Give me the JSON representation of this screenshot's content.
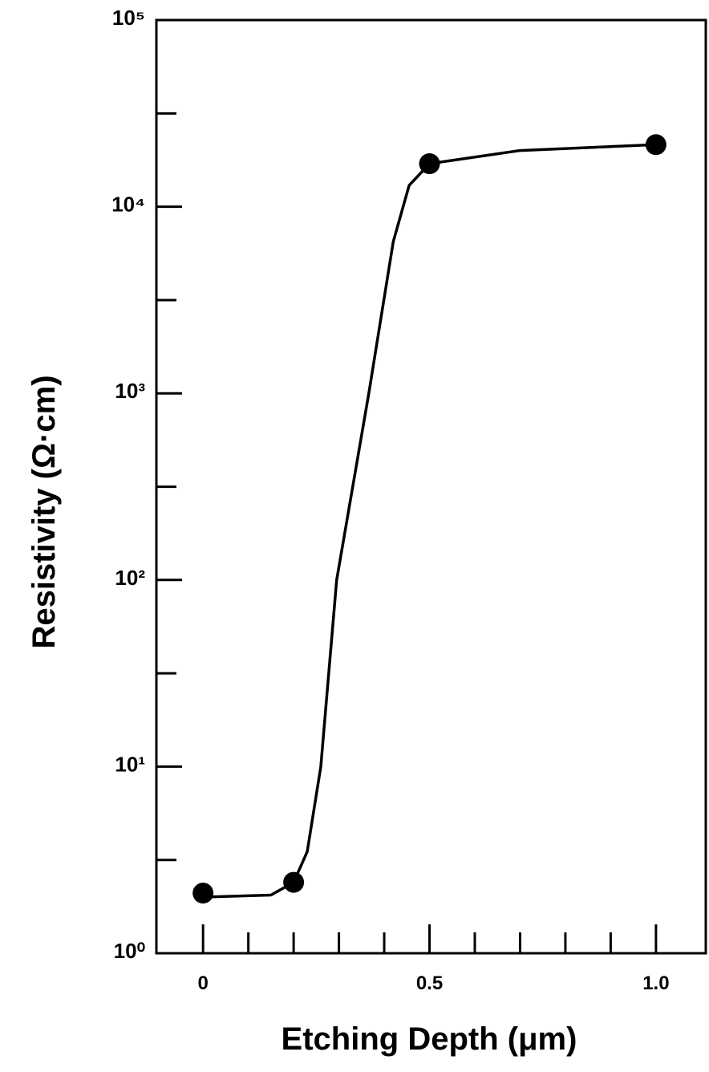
{
  "chart_data": {
    "type": "line",
    "xlabel": "Etching Depth (μm)",
    "ylabel": "Resistivity (Ω·cm)",
    "log_y": true,
    "color": "#000000",
    "x": [
      0,
      0.2,
      0.5,
      1.0
    ],
    "values": [
      2.1,
      2.4,
      17000,
      21500
    ],
    "curve": {
      "x": [
        0,
        0.15,
        0.2,
        0.23,
        0.26,
        0.295,
        0.366,
        0.42,
        0.455,
        0.5,
        0.7,
        1.0
      ],
      "values": [
        2.0,
        2.05,
        2.4,
        3.5,
        10,
        100,
        1000,
        6500,
        13000,
        17000,
        20000,
        21500
      ]
    },
    "xlim": [
      -0.103,
      1.11
    ],
    "ylim": [
      1,
      100000
    ],
    "xticks": [
      0,
      0.5,
      {
        "value": 1,
        "label": "1.0"
      }
    ],
    "xminorticks": [
      0.1,
      0.2,
      0.3,
      0.4,
      0.6,
      0.7,
      0.8,
      0.9
    ],
    "yticks": [
      {
        "value": 1,
        "label": "10⁰"
      },
      {
        "value": 10,
        "label": "10¹"
      },
      {
        "value": 100,
        "label": "10²"
      },
      {
        "value": 1000,
        "label": "10³"
      },
      {
        "value": 10000,
        "label": "10⁴"
      },
      {
        "value": 100000,
        "label": "10⁵"
      }
    ],
    "yminorticks": [
      3.16,
      31.6,
      316,
      3160,
      31600
    ]
  }
}
